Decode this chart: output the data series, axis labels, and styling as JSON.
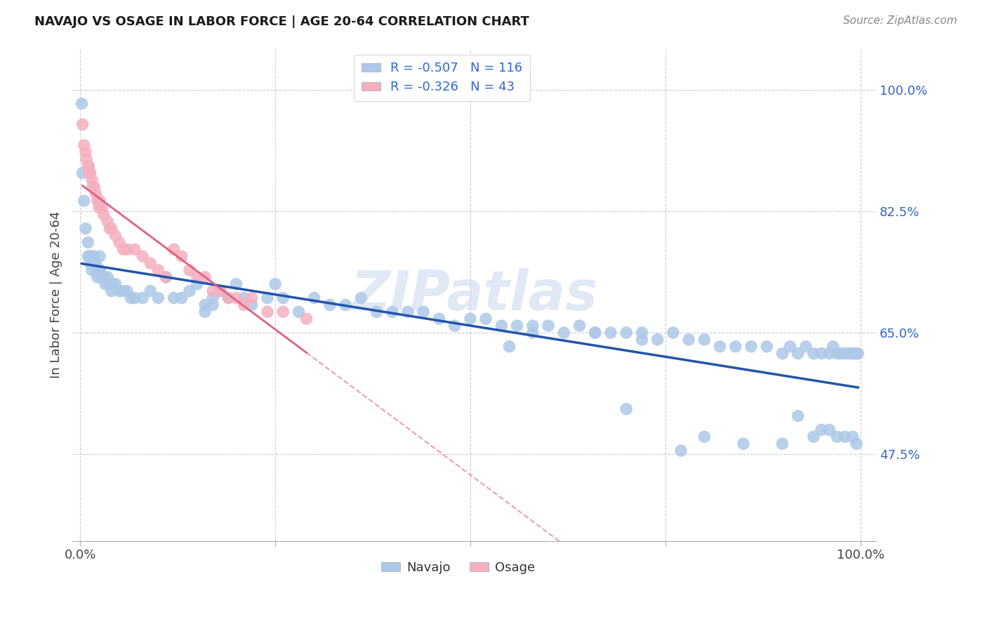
{
  "title": "NAVAJO VS OSAGE IN LABOR FORCE | AGE 20-64 CORRELATION CHART",
  "source": "Source: ZipAtlas.com",
  "ylabel": "In Labor Force | Age 20-64",
  "navajo_R": -0.507,
  "navajo_N": 116,
  "osage_R": -0.326,
  "osage_N": 43,
  "navajo_color": "#adc8e8",
  "navajo_line_color": "#2255aa",
  "osage_color": "#f5b0c0",
  "osage_line_color": "#e06080",
  "legend_text_color": "#3366cc",
  "watermark": "ZIPatlas",
  "ytick_labels_right": [
    "100.0%",
    "82.5%",
    "65.0%",
    "47.5%"
  ],
  "ytick_values_right": [
    1.0,
    0.825,
    0.65,
    0.475
  ],
  "navajo_x": [
    0.002,
    0.003,
    0.005,
    0.007,
    0.01,
    0.01,
    0.012,
    0.013,
    0.015,
    0.015,
    0.017,
    0.018,
    0.02,
    0.021,
    0.022,
    0.024,
    0.025,
    0.025,
    0.027,
    0.03,
    0.032,
    0.035,
    0.038,
    0.04,
    0.042,
    0.045,
    0.05,
    0.055,
    0.06,
    0.065,
    0.07,
    0.08,
    0.09,
    0.1,
    0.11,
    0.12,
    0.13,
    0.14,
    0.15,
    0.16,
    0.17,
    0.18,
    0.19,
    0.2,
    0.21,
    0.22,
    0.24,
    0.25,
    0.26,
    0.28,
    0.3,
    0.32,
    0.34,
    0.36,
    0.38,
    0.4,
    0.42,
    0.44,
    0.46,
    0.48,
    0.5,
    0.52,
    0.54,
    0.56,
    0.58,
    0.6,
    0.62,
    0.64,
    0.66,
    0.68,
    0.7,
    0.72,
    0.74,
    0.76,
    0.78,
    0.8,
    0.82,
    0.84,
    0.86,
    0.88,
    0.9,
    0.91,
    0.92,
    0.93,
    0.94,
    0.95,
    0.96,
    0.965,
    0.97,
    0.975,
    0.98,
    0.985,
    0.99,
    0.992,
    0.995,
    0.997,
    0.17,
    0.58,
    0.66,
    0.72,
    0.8,
    0.85,
    0.9,
    0.92,
    0.94,
    0.95,
    0.96,
    0.97,
    0.98,
    0.99,
    0.995,
    0.025,
    0.16,
    0.55,
    0.7,
    0.77
  ],
  "navajo_y": [
    0.98,
    0.88,
    0.84,
    0.8,
    0.78,
    0.76,
    0.76,
    0.75,
    0.76,
    0.74,
    0.76,
    0.75,
    0.75,
    0.74,
    0.73,
    0.74,
    0.76,
    0.74,
    0.73,
    0.73,
    0.72,
    0.73,
    0.72,
    0.71,
    0.72,
    0.72,
    0.71,
    0.71,
    0.71,
    0.7,
    0.7,
    0.7,
    0.71,
    0.7,
    0.73,
    0.7,
    0.7,
    0.71,
    0.72,
    0.69,
    0.7,
    0.71,
    0.7,
    0.72,
    0.7,
    0.69,
    0.7,
    0.72,
    0.7,
    0.68,
    0.7,
    0.69,
    0.69,
    0.7,
    0.68,
    0.68,
    0.68,
    0.68,
    0.67,
    0.66,
    0.67,
    0.67,
    0.66,
    0.66,
    0.66,
    0.66,
    0.65,
    0.66,
    0.65,
    0.65,
    0.65,
    0.65,
    0.64,
    0.65,
    0.64,
    0.64,
    0.63,
    0.63,
    0.63,
    0.63,
    0.62,
    0.63,
    0.62,
    0.63,
    0.62,
    0.62,
    0.62,
    0.63,
    0.62,
    0.62,
    0.62,
    0.62,
    0.62,
    0.62,
    0.62,
    0.62,
    0.69,
    0.65,
    0.65,
    0.64,
    0.5,
    0.49,
    0.49,
    0.53,
    0.5,
    0.51,
    0.51,
    0.5,
    0.5,
    0.5,
    0.49,
    0.74,
    0.68,
    0.63,
    0.54,
    0.48
  ],
  "osage_x": [
    0.003,
    0.005,
    0.007,
    0.008,
    0.01,
    0.011,
    0.012,
    0.013,
    0.015,
    0.016,
    0.018,
    0.02,
    0.022,
    0.024,
    0.025,
    0.028,
    0.03,
    0.035,
    0.038,
    0.04,
    0.045,
    0.05,
    0.055,
    0.06,
    0.07,
    0.08,
    0.09,
    0.1,
    0.11,
    0.12,
    0.13,
    0.14,
    0.15,
    0.16,
    0.17,
    0.18,
    0.19,
    0.2,
    0.21,
    0.22,
    0.24,
    0.26,
    0.29
  ],
  "osage_y": [
    0.95,
    0.92,
    0.91,
    0.9,
    0.89,
    0.89,
    0.88,
    0.88,
    0.87,
    0.86,
    0.86,
    0.85,
    0.84,
    0.83,
    0.84,
    0.83,
    0.82,
    0.81,
    0.8,
    0.8,
    0.79,
    0.78,
    0.77,
    0.77,
    0.77,
    0.76,
    0.75,
    0.74,
    0.73,
    0.77,
    0.76,
    0.74,
    0.73,
    0.73,
    0.71,
    0.71,
    0.7,
    0.7,
    0.69,
    0.7,
    0.68,
    0.68,
    0.67
  ],
  "xlim": [
    -0.01,
    1.02
  ],
  "ylim": [
    0.35,
    1.06
  ],
  "xtick_pos": [
    0.0,
    0.5,
    1.0
  ],
  "xtick_labels": [
    "0.0%",
    "",
    "100.0%"
  ]
}
